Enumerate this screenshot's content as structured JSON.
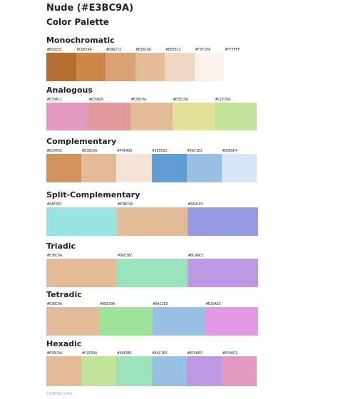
{
  "header": {
    "title": "Nude (#E3BC9A)",
    "subtitle": "Color Palette"
  },
  "palettes": [
    {
      "name": "Monochromatic",
      "swatches": [
        {
          "hex": "#B56E31",
          "color": "#B56E31"
        },
        {
          "hex": "#CD874A",
          "color": "#CD874A"
        },
        {
          "hex": "#D8A272",
          "color": "#D8A272"
        },
        {
          "hex": "#E3BC9A",
          "color": "#E3BC9A"
        },
        {
          "hex": "#EED6C2",
          "color": "#EED6C2"
        },
        {
          "hex": "#F9F1EA",
          "color": "#F9F1EA"
        },
        {
          "hex": "#FFFFFF",
          "color": "#FFFFFF"
        }
      ]
    },
    {
      "name": "Analogous",
      "swatches": [
        {
          "hex": "#E39AC1",
          "color": "#E39AC1"
        },
        {
          "hex": "#E39A9C",
          "color": "#E39A9C"
        },
        {
          "hex": "#E3BC9A",
          "color": "#E3BC9A"
        },
        {
          "hex": "#E3E19A",
          "color": "#E3E19A"
        },
        {
          "hex": "#C1E39A",
          "color": "#C1E39A"
        }
      ]
    },
    {
      "name": "Complementary",
      "swatches": [
        {
          "hex": "#D2945E",
          "color": "#D2945E"
        },
        {
          "hex": "#E3BC9A",
          "color": "#E3BC9A"
        },
        {
          "hex": "#F4E4D6",
          "color": "#F4E4D6"
        },
        {
          "hex": "#5E9CD2",
          "color": "#5E9CD2"
        },
        {
          "hex": "#9AC1E3",
          "color": "#9AC1E3"
        },
        {
          "hex": "#D6E6F4",
          "color": "#D6E6F4"
        }
      ]
    },
    {
      "name": "Split-Complementary",
      "swatches": [
        {
          "hex": "#9AE3E1",
          "color": "#9AE3E1"
        },
        {
          "hex": "#E3BC9A",
          "color": "#E3BC9A"
        },
        {
          "hex": "#9A9CE3",
          "color": "#9A9CE3"
        }
      ]
    },
    {
      "name": "Triadic",
      "swatches": [
        {
          "hex": "#E3BC9A",
          "color": "#E3BC9A"
        },
        {
          "hex": "#9AE3BC",
          "color": "#9AE3BC"
        },
        {
          "hex": "#BC9AE3",
          "color": "#BC9AE3"
        }
      ]
    },
    {
      "name": "Tetradic",
      "swatches": [
        {
          "hex": "#E3BC9A",
          "color": "#E3BC9A"
        },
        {
          "hex": "#9DE39A",
          "color": "#9DE39A"
        },
        {
          "hex": "#9AC1E3",
          "color": "#9AC1E3"
        },
        {
          "hex": "#E19AE3",
          "color": "#E19AE3"
        }
      ]
    },
    {
      "name": "Hexadic",
      "swatches": [
        {
          "hex": "#E3BC9A",
          "color": "#E3BC9A"
        },
        {
          "hex": "#C1E39A",
          "color": "#C1E39A"
        },
        {
          "hex": "#9AE3BC",
          "color": "#9AE3BC"
        },
        {
          "hex": "#9AC1E3",
          "color": "#9AC1E3"
        },
        {
          "hex": "#BC9AE3",
          "color": "#BC9AE3"
        },
        {
          "hex": "#E39AC1",
          "color": "#E39AC1"
        }
      ]
    }
  ],
  "footer": {
    "text": "colorxs.com"
  }
}
